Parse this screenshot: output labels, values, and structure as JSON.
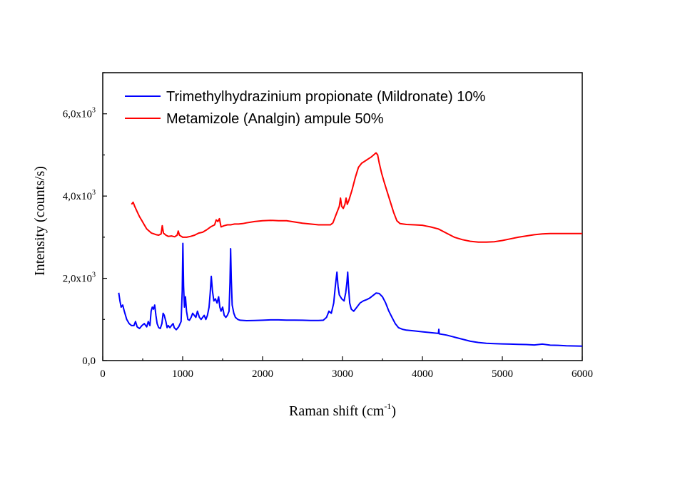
{
  "chart_data": {
    "type": "line",
    "title": "",
    "xlabel": "Raman shift (cm",
    "xlabel_sup": "-1",
    "xlabel_close": ")",
    "ylabel": "Intensity (counts/s)",
    "xlim": [
      0,
      6000
    ],
    "ylim": [
      0,
      7000
    ],
    "x_ticks": [
      {
        "value": 0,
        "label": "0"
      },
      {
        "value": 1000,
        "label": "1000"
      },
      {
        "value": 2000,
        "label": "2000"
      },
      {
        "value": 3000,
        "label": "3000"
      },
      {
        "value": 4000,
        "label": "4000"
      },
      {
        "value": 5000,
        "label": "5000"
      },
      {
        "value": 6000,
        "label": "6000"
      }
    ],
    "y_ticks": [
      {
        "value": 0,
        "label": "0,0",
        "sup": ""
      },
      {
        "value": 2000,
        "label": "2,0x10",
        "sup": "3"
      },
      {
        "value": 4000,
        "label": "4,0x10",
        "sup": "3"
      },
      {
        "value": 6000,
        "label": "6,0x10",
        "sup": "3"
      }
    ],
    "grid": false,
    "legend_position": "top-left",
    "series": [
      {
        "name": "Trimethylhydrazinium propionate (Mildronate) 10%",
        "color": "#0000ff",
        "points": [
          [
            200,
            1650
          ],
          [
            215,
            1450
          ],
          [
            230,
            1300
          ],
          [
            250,
            1350
          ],
          [
            270,
            1200
          ],
          [
            300,
            1000
          ],
          [
            330,
            900
          ],
          [
            360,
            850
          ],
          [
            390,
            850
          ],
          [
            410,
            950
          ],
          [
            430,
            820
          ],
          [
            460,
            780
          ],
          [
            490,
            850
          ],
          [
            520,
            900
          ],
          [
            550,
            820
          ],
          [
            570,
            950
          ],
          [
            590,
            850
          ],
          [
            605,
            1200
          ],
          [
            620,
            1300
          ],
          [
            635,
            1250
          ],
          [
            650,
            1350
          ],
          [
            665,
            1100
          ],
          [
            680,
            900
          ],
          [
            700,
            800
          ],
          [
            720,
            780
          ],
          [
            740,
            900
          ],
          [
            755,
            1150
          ],
          [
            770,
            1100
          ],
          [
            790,
            950
          ],
          [
            805,
            800
          ],
          [
            820,
            850
          ],
          [
            840,
            800
          ],
          [
            860,
            850
          ],
          [
            880,
            900
          ],
          [
            895,
            800
          ],
          [
            920,
            750
          ],
          [
            950,
            820
          ],
          [
            980,
            950
          ],
          [
            995,
            1700
          ],
          [
            1003,
            2850
          ],
          [
            1012,
            1800
          ],
          [
            1022,
            1300
          ],
          [
            1035,
            1550
          ],
          [
            1048,
            1200
          ],
          [
            1065,
            1000
          ],
          [
            1085,
            980
          ],
          [
            1105,
            1050
          ],
          [
            1125,
            1150
          ],
          [
            1145,
            1100
          ],
          [
            1165,
            1050
          ],
          [
            1185,
            1200
          ],
          [
            1210,
            1050
          ],
          [
            1230,
            1000
          ],
          [
            1250,
            1050
          ],
          [
            1270,
            1100
          ],
          [
            1290,
            1000
          ],
          [
            1310,
            1100
          ],
          [
            1330,
            1300
          ],
          [
            1345,
            1650
          ],
          [
            1358,
            2050
          ],
          [
            1372,
            1700
          ],
          [
            1390,
            1450
          ],
          [
            1410,
            1500
          ],
          [
            1430,
            1400
          ],
          [
            1450,
            1550
          ],
          [
            1465,
            1300
          ],
          [
            1480,
            1200
          ],
          [
            1500,
            1300
          ],
          [
            1520,
            1100
          ],
          [
            1540,
            1050
          ],
          [
            1560,
            1100
          ],
          [
            1580,
            1200
          ],
          [
            1592,
            1900
          ],
          [
            1600,
            2720
          ],
          [
            1608,
            2000
          ],
          [
            1620,
            1350
          ],
          [
            1640,
            1150
          ],
          [
            1660,
            1050
          ],
          [
            1690,
            1000
          ],
          [
            1720,
            980
          ],
          [
            1800,
            970
          ],
          [
            1900,
            975
          ],
          [
            2000,
            980
          ],
          [
            2100,
            990
          ],
          [
            2200,
            990
          ],
          [
            2300,
            985
          ],
          [
            2400,
            985
          ],
          [
            2500,
            980
          ],
          [
            2600,
            975
          ],
          [
            2700,
            975
          ],
          [
            2760,
            980
          ],
          [
            2800,
            1050
          ],
          [
            2830,
            1200
          ],
          [
            2860,
            1150
          ],
          [
            2890,
            1400
          ],
          [
            2910,
            1800
          ],
          [
            2930,
            2150
          ],
          [
            2945,
            1800
          ],
          [
            2960,
            1600
          ],
          [
            2990,
            1500
          ],
          [
            3020,
            1450
          ],
          [
            3040,
            1650
          ],
          [
            3055,
            1900
          ],
          [
            3065,
            2150
          ],
          [
            3075,
            1800
          ],
          [
            3090,
            1400
          ],
          [
            3110,
            1250
          ],
          [
            3140,
            1200
          ],
          [
            3180,
            1300
          ],
          [
            3220,
            1400
          ],
          [
            3260,
            1450
          ],
          [
            3300,
            1480
          ],
          [
            3340,
            1520
          ],
          [
            3380,
            1580
          ],
          [
            3420,
            1640
          ],
          [
            3460,
            1630
          ],
          [
            3500,
            1550
          ],
          [
            3540,
            1400
          ],
          [
            3580,
            1200
          ],
          [
            3620,
            1050
          ],
          [
            3660,
            900
          ],
          [
            3700,
            800
          ],
          [
            3750,
            760
          ],
          [
            3800,
            740
          ],
          [
            3900,
            720
          ],
          [
            4000,
            700
          ],
          [
            4100,
            680
          ],
          [
            4200,
            660
          ],
          [
            4205,
            760
          ],
          [
            4210,
            650
          ],
          [
            4300,
            620
          ],
          [
            4400,
            570
          ],
          [
            4500,
            520
          ],
          [
            4600,
            470
          ],
          [
            4700,
            440
          ],
          [
            4800,
            420
          ],
          [
            4900,
            410
          ],
          [
            5000,
            405
          ],
          [
            5100,
            400
          ],
          [
            5200,
            395
          ],
          [
            5300,
            390
          ],
          [
            5400,
            380
          ],
          [
            5500,
            400
          ],
          [
            5600,
            375
          ],
          [
            5700,
            370
          ],
          [
            5800,
            360
          ],
          [
            5900,
            355
          ],
          [
            6000,
            350
          ]
        ]
      },
      {
        "name": "Metamizole (Analgin) ampule 50%",
        "color": "#ff0000",
        "points": [
          [
            360,
            3800
          ],
          [
            380,
            3850
          ],
          [
            400,
            3750
          ],
          [
            430,
            3620
          ],
          [
            460,
            3500
          ],
          [
            490,
            3400
          ],
          [
            520,
            3300
          ],
          [
            550,
            3200
          ],
          [
            580,
            3150
          ],
          [
            610,
            3100
          ],
          [
            640,
            3080
          ],
          [
            670,
            3060
          ],
          [
            700,
            3050
          ],
          [
            730,
            3080
          ],
          [
            745,
            3280
          ],
          [
            760,
            3100
          ],
          [
            790,
            3050
          ],
          [
            820,
            3020
          ],
          [
            860,
            3030
          ],
          [
            900,
            3010
          ],
          [
            930,
            3050
          ],
          [
            945,
            3150
          ],
          [
            960,
            3050
          ],
          [
            1000,
            3000
          ],
          [
            1050,
            3000
          ],
          [
            1100,
            3020
          ],
          [
            1150,
            3050
          ],
          [
            1200,
            3100
          ],
          [
            1250,
            3120
          ],
          [
            1300,
            3180
          ],
          [
            1350,
            3250
          ],
          [
            1400,
            3300
          ],
          [
            1420,
            3420
          ],
          [
            1440,
            3380
          ],
          [
            1460,
            3450
          ],
          [
            1480,
            3250
          ],
          [
            1520,
            3280
          ],
          [
            1560,
            3300
          ],
          [
            1600,
            3300
          ],
          [
            1650,
            3320
          ],
          [
            1700,
            3320
          ],
          [
            1750,
            3330
          ],
          [
            1800,
            3350
          ],
          [
            1900,
            3380
          ],
          [
            2000,
            3400
          ],
          [
            2100,
            3410
          ],
          [
            2200,
            3400
          ],
          [
            2300,
            3400
          ],
          [
            2400,
            3370
          ],
          [
            2500,
            3340
          ],
          [
            2600,
            3320
          ],
          [
            2700,
            3300
          ],
          [
            2800,
            3300
          ],
          [
            2850,
            3300
          ],
          [
            2880,
            3350
          ],
          [
            2910,
            3500
          ],
          [
            2940,
            3650
          ],
          [
            2960,
            3750
          ],
          [
            2975,
            3950
          ],
          [
            2990,
            3750
          ],
          [
            3010,
            3700
          ],
          [
            3030,
            3800
          ],
          [
            3045,
            3950
          ],
          [
            3060,
            3800
          ],
          [
            3080,
            3900
          ],
          [
            3120,
            4150
          ],
          [
            3160,
            4450
          ],
          [
            3200,
            4700
          ],
          [
            3240,
            4800
          ],
          [
            3280,
            4850
          ],
          [
            3320,
            4900
          ],
          [
            3360,
            4950
          ],
          [
            3390,
            5000
          ],
          [
            3420,
            5050
          ],
          [
            3440,
            5000
          ],
          [
            3460,
            4800
          ],
          [
            3490,
            4550
          ],
          [
            3520,
            4350
          ],
          [
            3560,
            4100
          ],
          [
            3600,
            3850
          ],
          [
            3640,
            3600
          ],
          [
            3680,
            3400
          ],
          [
            3720,
            3330
          ],
          [
            3760,
            3320
          ],
          [
            3800,
            3310
          ],
          [
            3900,
            3300
          ],
          [
            4000,
            3290
          ],
          [
            4050,
            3270
          ],
          [
            4100,
            3250
          ],
          [
            4200,
            3200
          ],
          [
            4300,
            3100
          ],
          [
            4400,
            3000
          ],
          [
            4500,
            2940
          ],
          [
            4600,
            2900
          ],
          [
            4700,
            2880
          ],
          [
            4800,
            2880
          ],
          [
            4900,
            2890
          ],
          [
            5000,
            2920
          ],
          [
            5100,
            2960
          ],
          [
            5200,
            3000
          ],
          [
            5300,
            3030
          ],
          [
            5400,
            3060
          ],
          [
            5500,
            3080
          ],
          [
            5600,
            3090
          ],
          [
            5700,
            3090
          ],
          [
            5800,
            3090
          ],
          [
            5900,
            3090
          ],
          [
            6000,
            3090
          ]
        ]
      }
    ]
  }
}
